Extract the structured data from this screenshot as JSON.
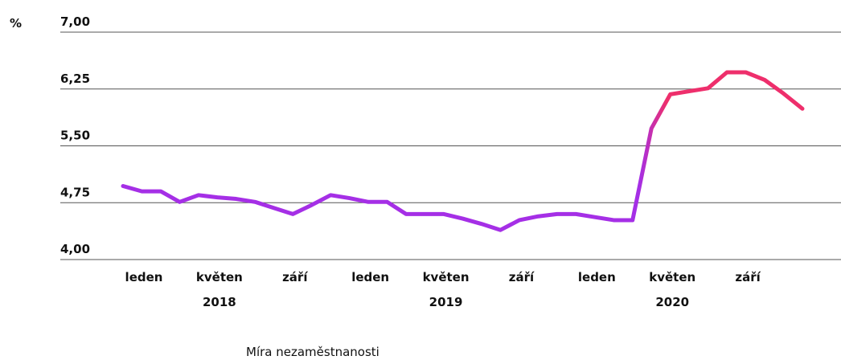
{
  "chart_data": {
    "type": "line",
    "y_unit": "%",
    "categories": [
      "leden",
      null,
      null,
      null,
      "květen",
      null,
      null,
      null,
      "září",
      null,
      null,
      null,
      "leden",
      null,
      null,
      null,
      "květen",
      null,
      null,
      null,
      "září",
      null,
      null,
      null,
      "leden",
      null,
      null,
      null,
      "květen",
      null,
      null,
      null,
      "září",
      null,
      null,
      null,
      null
    ],
    "year_labels": [
      "2018",
      "2019",
      "2020"
    ],
    "series": [
      {
        "name": "Míra nezaměstnanosti",
        "gradient": [
          "#a52fe6",
          "#ee2f6c"
        ],
        "values": [
          4.97,
          4.9,
          4.9,
          4.76,
          4.85,
          4.82,
          4.8,
          4.76,
          4.68,
          4.6,
          4.72,
          4.85,
          4.81,
          4.76,
          4.76,
          4.6,
          4.6,
          4.6,
          4.54,
          4.47,
          4.39,
          4.52,
          4.57,
          4.6,
          4.6,
          4.56,
          4.52,
          4.52,
          5.73,
          6.18,
          6.22,
          6.26,
          6.47,
          6.47,
          6.37,
          6.19,
          5.99
        ]
      }
    ],
    "ylim": [
      4,
      7
    ],
    "yticks": [
      {
        "value": 7,
        "label": "7,00"
      },
      {
        "value": 6.25,
        "label": "6,25"
      },
      {
        "value": 5.5,
        "label": "5,50"
      },
      {
        "value": 4.75,
        "label": "4,75"
      },
      {
        "value": 4,
        "label": "4,00"
      }
    ],
    "grid": true
  }
}
